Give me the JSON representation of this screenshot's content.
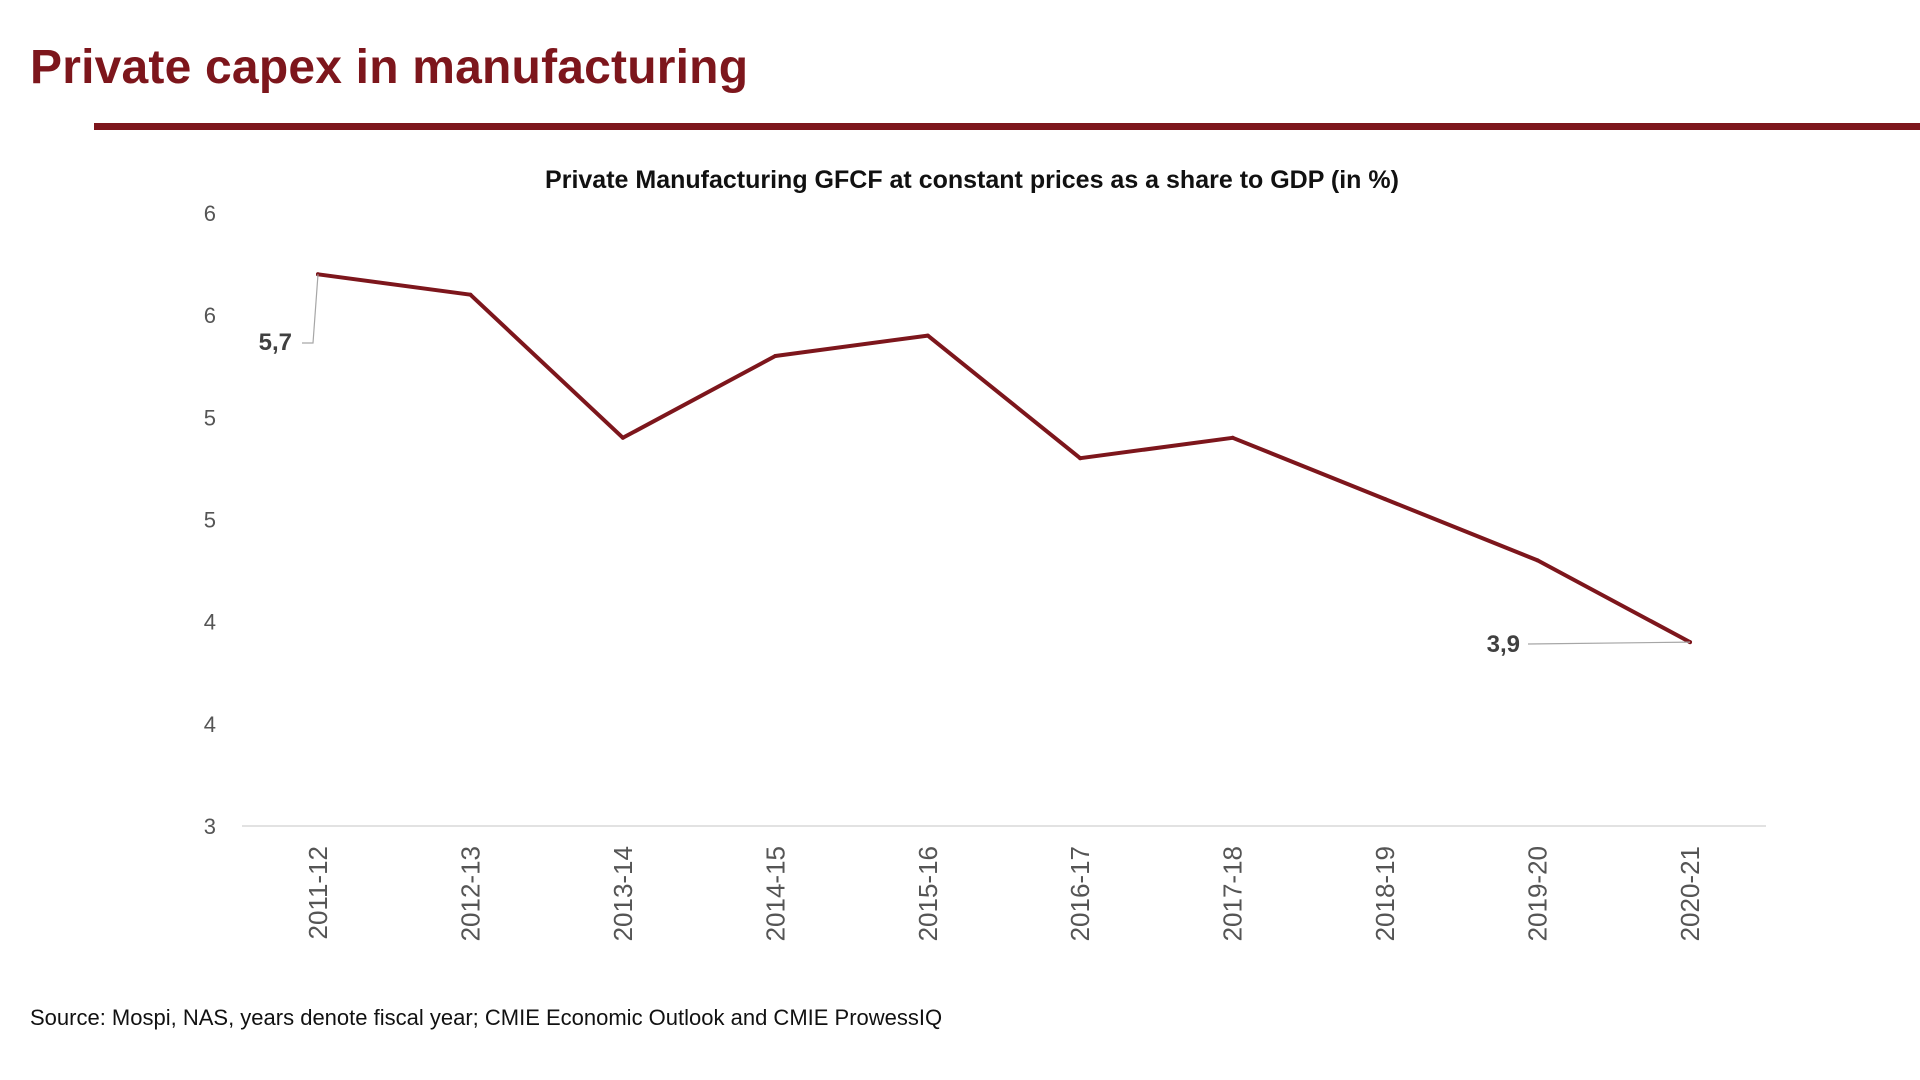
{
  "page": {
    "title": "Private capex in manufacturing",
    "source": "Source: Mospi, NAS, years denote fiscal year; CMIE Economic Outlook and CMIE ProwessIQ",
    "accent_color": "#7d161c"
  },
  "chart_data": {
    "type": "line",
    "title": "Private Manufacturing  GFCF at constant prices as a share to GDP (in %)",
    "xlabel": "",
    "ylabel": "",
    "categories": [
      "2011-12",
      "2012-13",
      "2013-14",
      "2014-15",
      "2015-16",
      "2016-17",
      "2017-18",
      "2018-19",
      "2019-20",
      "2020-21"
    ],
    "series": [
      {
        "values": [
          5.7,
          5.6,
          4.9,
          5.3,
          5.4,
          4.8,
          4.9,
          4.6,
          4.3,
          3.9
        ],
        "color": "#7d161c"
      }
    ],
    "ylim": [
      3.0,
      6.0
    ],
    "yticks": [
      3.0,
      3.5,
      4.0,
      4.5,
      5.0,
      5.5,
      6.0
    ],
    "ytick_labels": [
      "3",
      "4",
      "4",
      "5",
      "5",
      "6",
      "6"
    ],
    "data_labels": [
      {
        "index": 0,
        "text": "5,7"
      },
      {
        "index": 9,
        "text": "3,9"
      }
    ],
    "grid": false,
    "legend": "none"
  }
}
